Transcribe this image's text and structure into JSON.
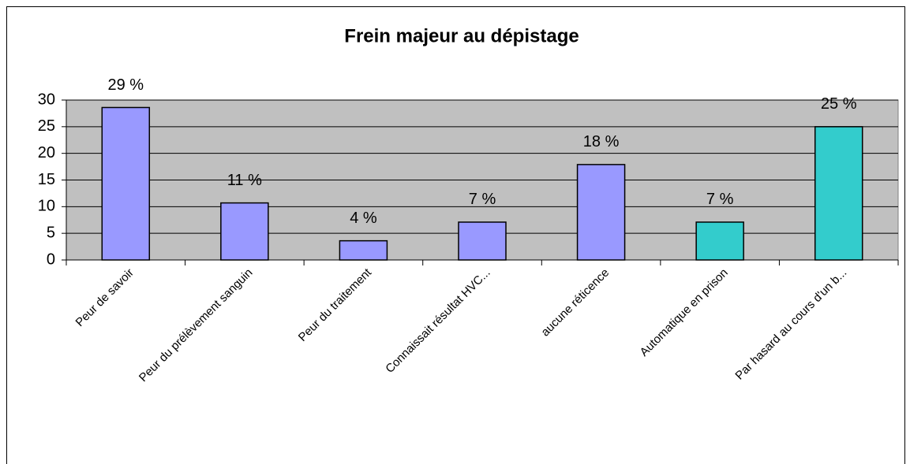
{
  "chart_data": {
    "type": "bar",
    "title": "Frein majeur au dépistage",
    "categories": [
      "Peur de savoir",
      "Peur du prélèvement sanguin",
      "Peur du traitement",
      "Connaissait résultat HVC...",
      "aucune réticence",
      "Automatique en prison",
      "Par hasard au cours d'un b..."
    ],
    "values": [
      28.6,
      10.7,
      3.6,
      7.1,
      17.9,
      7.1,
      25
    ],
    "value_labels": [
      "29 %",
      "11 %",
      "4 %",
      "7 %",
      "18 %",
      "7 %",
      "25 %"
    ],
    "colors": [
      "#9999ff",
      "#9999ff",
      "#9999ff",
      "#9999ff",
      "#9999ff",
      "#33cccc",
      "#33cccc"
    ],
    "ylim": [
      0,
      30
    ],
    "yticks": [
      0,
      5,
      10,
      15,
      20,
      25,
      30
    ],
    "grid": true
  }
}
